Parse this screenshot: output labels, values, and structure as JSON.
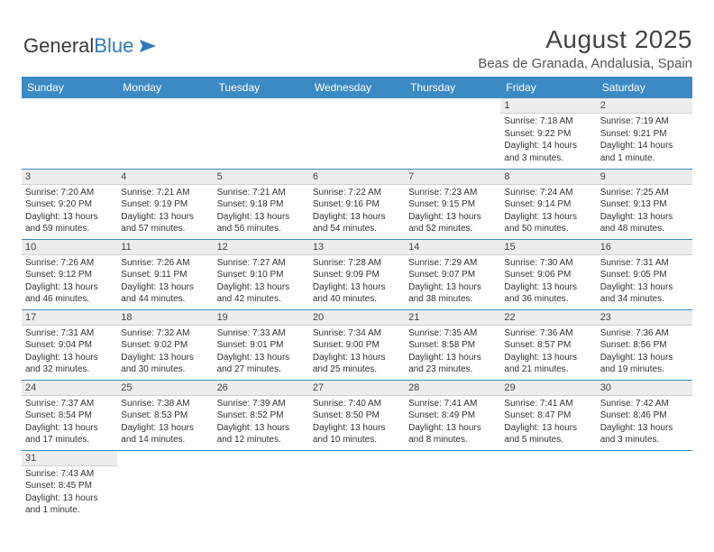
{
  "brand": {
    "part1": "General",
    "part2": "Blue"
  },
  "title": "August 2025",
  "location": "Beas de Granada, Andalusia, Spain",
  "colors": {
    "header_bg": "#3b8ac4",
    "daynum_bg": "#ededed",
    "border": "#3b8ac4"
  },
  "day_headers": [
    "Sunday",
    "Monday",
    "Tuesday",
    "Wednesday",
    "Thursday",
    "Friday",
    "Saturday"
  ],
  "blanks_before": 5,
  "days": [
    {
      "n": 1,
      "sr": "7:18 AM",
      "ss": "9:22 PM",
      "dl": "14 hours and 3 minutes."
    },
    {
      "n": 2,
      "sr": "7:19 AM",
      "ss": "9:21 PM",
      "dl": "14 hours and 1 minute."
    },
    {
      "n": 3,
      "sr": "7:20 AM",
      "ss": "9:20 PM",
      "dl": "13 hours and 59 minutes."
    },
    {
      "n": 4,
      "sr": "7:21 AM",
      "ss": "9:19 PM",
      "dl": "13 hours and 57 minutes."
    },
    {
      "n": 5,
      "sr": "7:21 AM",
      "ss": "9:18 PM",
      "dl": "13 hours and 56 minutes."
    },
    {
      "n": 6,
      "sr": "7:22 AM",
      "ss": "9:16 PM",
      "dl": "13 hours and 54 minutes."
    },
    {
      "n": 7,
      "sr": "7:23 AM",
      "ss": "9:15 PM",
      "dl": "13 hours and 52 minutes."
    },
    {
      "n": 8,
      "sr": "7:24 AM",
      "ss": "9:14 PM",
      "dl": "13 hours and 50 minutes."
    },
    {
      "n": 9,
      "sr": "7:25 AM",
      "ss": "9:13 PM",
      "dl": "13 hours and 48 minutes."
    },
    {
      "n": 10,
      "sr": "7:26 AM",
      "ss": "9:12 PM",
      "dl": "13 hours and 46 minutes."
    },
    {
      "n": 11,
      "sr": "7:26 AM",
      "ss": "9:11 PM",
      "dl": "13 hours and 44 minutes."
    },
    {
      "n": 12,
      "sr": "7:27 AM",
      "ss": "9:10 PM",
      "dl": "13 hours and 42 minutes."
    },
    {
      "n": 13,
      "sr": "7:28 AM",
      "ss": "9:09 PM",
      "dl": "13 hours and 40 minutes."
    },
    {
      "n": 14,
      "sr": "7:29 AM",
      "ss": "9:07 PM",
      "dl": "13 hours and 38 minutes."
    },
    {
      "n": 15,
      "sr": "7:30 AM",
      "ss": "9:06 PM",
      "dl": "13 hours and 36 minutes."
    },
    {
      "n": 16,
      "sr": "7:31 AM",
      "ss": "9:05 PM",
      "dl": "13 hours and 34 minutes."
    },
    {
      "n": 17,
      "sr": "7:31 AM",
      "ss": "9:04 PM",
      "dl": "13 hours and 32 minutes."
    },
    {
      "n": 18,
      "sr": "7:32 AM",
      "ss": "9:02 PM",
      "dl": "13 hours and 30 minutes."
    },
    {
      "n": 19,
      "sr": "7:33 AM",
      "ss": "9:01 PM",
      "dl": "13 hours and 27 minutes."
    },
    {
      "n": 20,
      "sr": "7:34 AM",
      "ss": "9:00 PM",
      "dl": "13 hours and 25 minutes."
    },
    {
      "n": 21,
      "sr": "7:35 AM",
      "ss": "8:58 PM",
      "dl": "13 hours and 23 minutes."
    },
    {
      "n": 22,
      "sr": "7:36 AM",
      "ss": "8:57 PM",
      "dl": "13 hours and 21 minutes."
    },
    {
      "n": 23,
      "sr": "7:36 AM",
      "ss": "8:56 PM",
      "dl": "13 hours and 19 minutes."
    },
    {
      "n": 24,
      "sr": "7:37 AM",
      "ss": "8:54 PM",
      "dl": "13 hours and 17 minutes."
    },
    {
      "n": 25,
      "sr": "7:38 AM",
      "ss": "8:53 PM",
      "dl": "13 hours and 14 minutes."
    },
    {
      "n": 26,
      "sr": "7:39 AM",
      "ss": "8:52 PM",
      "dl": "13 hours and 12 minutes."
    },
    {
      "n": 27,
      "sr": "7:40 AM",
      "ss": "8:50 PM",
      "dl": "13 hours and 10 minutes."
    },
    {
      "n": 28,
      "sr": "7:41 AM",
      "ss": "8:49 PM",
      "dl": "13 hours and 8 minutes."
    },
    {
      "n": 29,
      "sr": "7:41 AM",
      "ss": "8:47 PM",
      "dl": "13 hours and 5 minutes."
    },
    {
      "n": 30,
      "sr": "7:42 AM",
      "ss": "8:46 PM",
      "dl": "13 hours and 3 minutes."
    },
    {
      "n": 31,
      "sr": "7:43 AM",
      "ss": "8:45 PM",
      "dl": "13 hours and 1 minute."
    }
  ],
  "labels": {
    "sunrise": "Sunrise:",
    "sunset": "Sunset:",
    "daylight": "Daylight:"
  }
}
